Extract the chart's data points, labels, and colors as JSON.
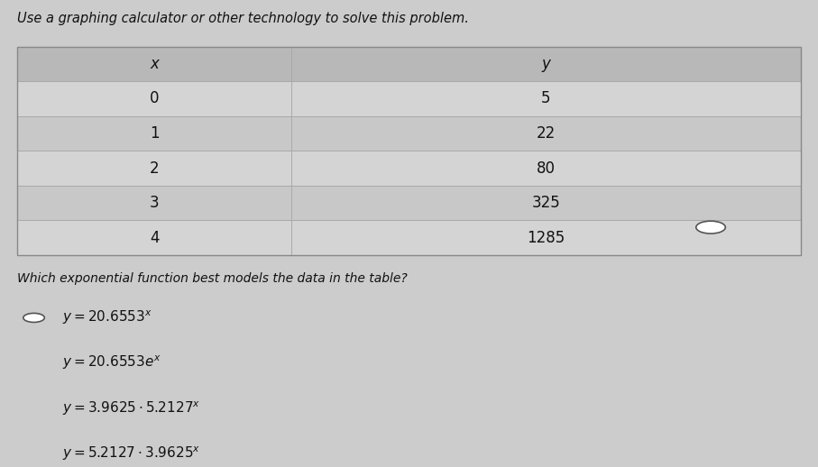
{
  "title": "Use a graphing calculator or other technology to solve this problem.",
  "table_headers": [
    "x",
    "y"
  ],
  "table_data": [
    [
      "0",
      "5"
    ],
    [
      "1",
      "22"
    ],
    [
      "2",
      "80"
    ],
    [
      "3",
      "325"
    ],
    [
      "4",
      "1285"
    ]
  ],
  "question": "Which exponential function best models the data in the table?",
  "options_latex": [
    "$y = 20.6553^x$",
    "$y = 20.6553e^x$",
    "$y = 3.9625 \\cdot 5.2127^x$",
    "$y = 5.2127 \\cdot 3.9625^x$"
  ],
  "bg_color": "#cccccc",
  "table_bg_light": "#d4d4d4",
  "table_bg_dark": "#c8c8c8",
  "header_bg": "#b8b8b8",
  "text_color": "#111111"
}
